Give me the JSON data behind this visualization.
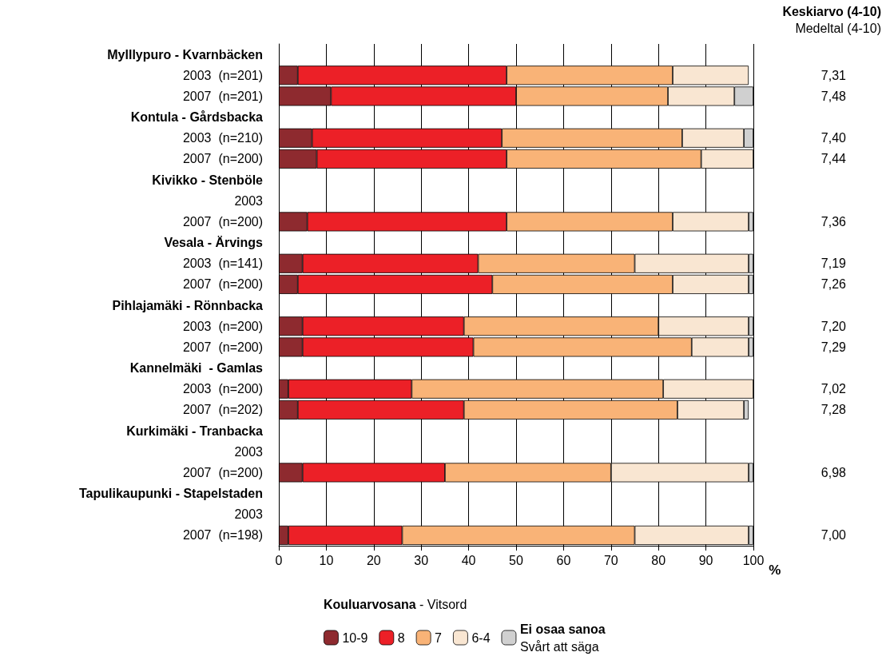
{
  "chart_data": {
    "type": "bar",
    "orientation": "horizontal",
    "stacked": true,
    "categories": [
      "Mylllypuro - Kvarnbäcken",
      "2003  (n=201)",
      "2007  (n=201)",
      "Kontula - Gårdsbacka",
      "2003  (n=210)",
      "2007  (n=200)",
      "Kivikko - Stenböle",
      "2003",
      "2007  (n=200)",
      "Vesala - Ärvings",
      "2003  (n=141)",
      "2007  (n=200)",
      "Pihlajamäki - Rönnbacka",
      "2003  (n=200)",
      "2007  (n=200)",
      "Kannelmäki  - Gamlas",
      "2003  (n=200)",
      "2007  (n=202)",
      "Kurkimäki - Tranbacka",
      "2003",
      "2007  (n=200)",
      "Tapulikaupunki - Stapelstaden",
      "2003",
      "2007  (n=198)"
    ],
    "y2_categories": [
      null,
      "7,31",
      "7,48",
      null,
      "7,40",
      "7,44",
      null,
      null,
      "7,36",
      null,
      "7,19",
      "7,26",
      null,
      "7,20",
      "7,29",
      null,
      "7,02",
      "7,28",
      null,
      null,
      "6,98",
      null,
      null,
      "7,00"
    ],
    "y2label": "Keskiarvo (4-10)\nMedeltal (4-10)",
    "xlabel": "%",
    "legend_title": "Kouluarvosana - Vitsord",
    "series": [
      {
        "name": "10-9",
        "color": "#8e2a2f",
        "values": [
          null,
          4,
          11,
          null,
          7,
          8,
          null,
          null,
          6,
          null,
          5,
          4,
          null,
          5,
          5,
          null,
          2,
          4,
          null,
          null,
          5,
          null,
          null,
          2
        ]
      },
      {
        "name": "8",
        "color": "#ec2027",
        "values": [
          null,
          44,
          39,
          null,
          40,
          40,
          null,
          null,
          42,
          null,
          37,
          41,
          null,
          34,
          36,
          null,
          26,
          35,
          null,
          null,
          30,
          null,
          null,
          24
        ]
      },
      {
        "name": "7",
        "color": "#f9b377",
        "values": [
          null,
          35,
          32,
          null,
          38,
          41,
          null,
          null,
          35,
          null,
          33,
          38,
          null,
          41,
          46,
          null,
          53,
          45,
          null,
          null,
          35,
          null,
          null,
          49
        ]
      },
      {
        "name": "6-4",
        "color": "#f9e6d2",
        "values": [
          null,
          16,
          14,
          null,
          13,
          11,
          null,
          null,
          16,
          null,
          24,
          16,
          null,
          19,
          12,
          null,
          19,
          14,
          null,
          null,
          29,
          null,
          null,
          24
        ]
      },
      {
        "name": "Ei osaa sanoa\nSvårt att säga",
        "color": "#d0d0d0",
        "values": [
          null,
          null,
          4,
          null,
          2,
          null,
          null,
          null,
          1,
          null,
          1,
          1,
          null,
          1,
          1,
          null,
          null,
          1,
          null,
          null,
          1,
          null,
          null,
          1
        ]
      }
    ],
    "xlim": [
      0,
      100
    ],
    "xticks": [
      0,
      10,
      20,
      30,
      40,
      50,
      60,
      70,
      80,
      90,
      100
    ],
    "grid": "x",
    "legend": "bottom"
  }
}
